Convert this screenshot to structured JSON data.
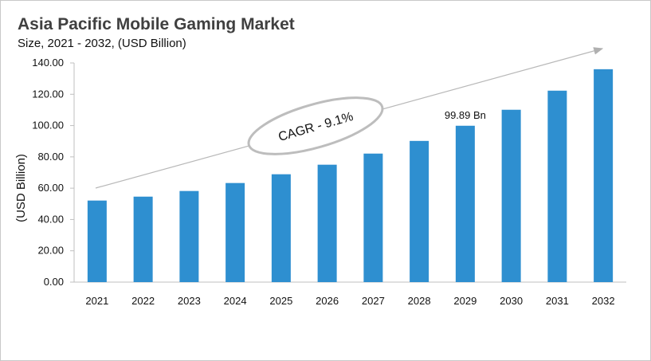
{
  "chart_data": {
    "type": "bar",
    "title": "Asia Pacific Mobile Gaming Market",
    "subtitle": "Size, 2021 - 2032, (USD Billion)",
    "xlabel": "",
    "ylabel": "(USD Billion)",
    "ylim": [
      0,
      140
    ],
    "yticks": [
      "0.00",
      "20.00",
      "40.00",
      "60.00",
      "80.00",
      "100.00",
      "120.00",
      "140.00"
    ],
    "categories": [
      "2021",
      "2022",
      "2023",
      "2024",
      "2025",
      "2026",
      "2027",
      "2028",
      "2029",
      "2030",
      "2031",
      "2032"
    ],
    "values": [
      52.1,
      54.6,
      58.2,
      63.3,
      68.9,
      75.0,
      82.1,
      90.2,
      99.89,
      110.1,
      122.3,
      136.0
    ],
    "data_label": {
      "category": "2029",
      "text": "99.89 Bn"
    },
    "annotation": "CAGR - 9.1%",
    "bar_color": "#2e8fd0",
    "grid": false,
    "legend": "none"
  }
}
